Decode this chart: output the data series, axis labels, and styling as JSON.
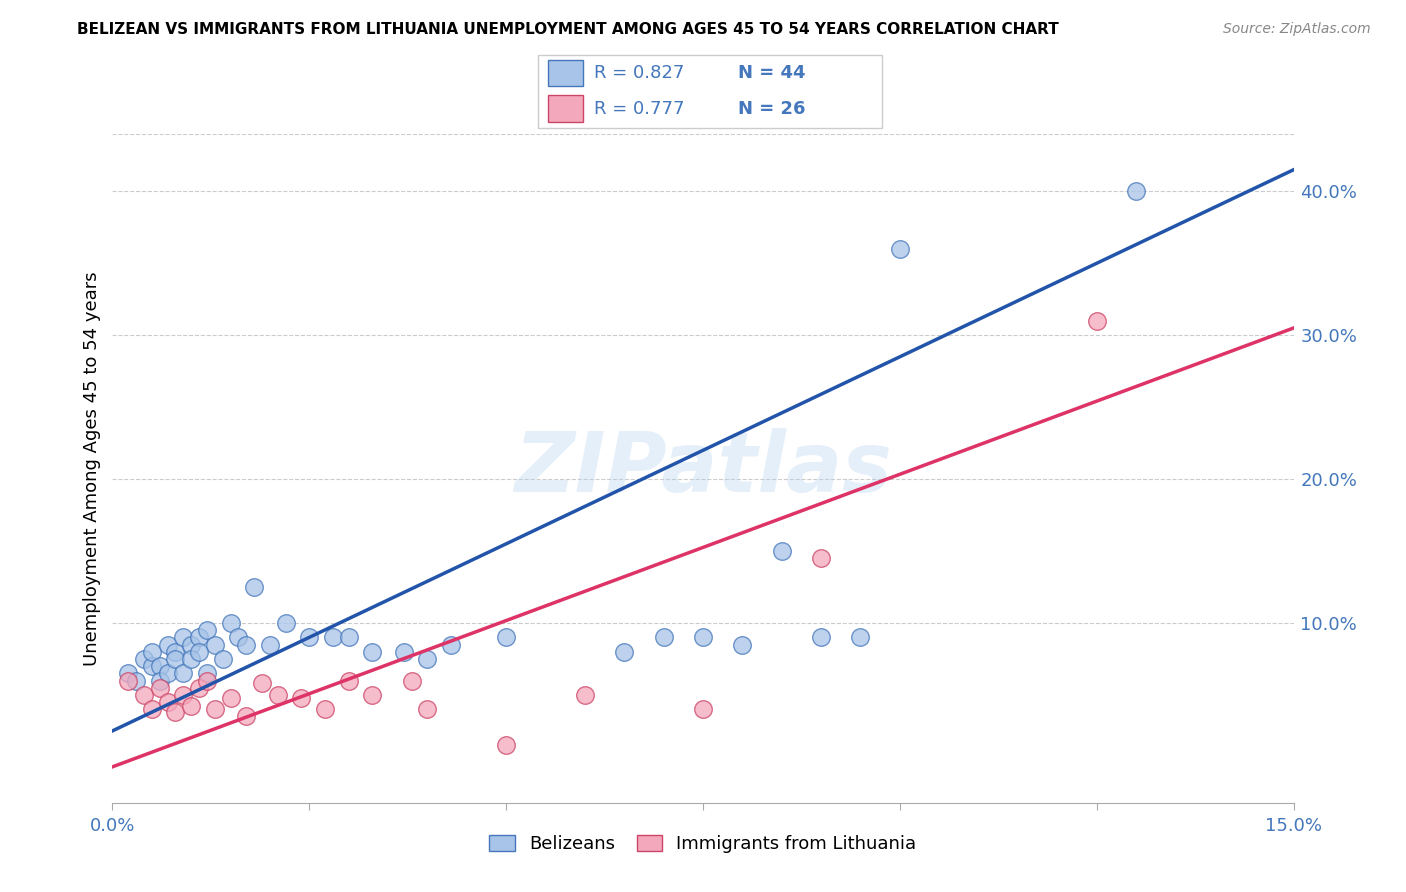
{
  "title": "BELIZEAN VS IMMIGRANTS FROM LITHUANIA UNEMPLOYMENT AMONG AGES 45 TO 54 YEARS CORRELATION CHART",
  "source": "Source: ZipAtlas.com",
  "ylabel": "Unemployment Among Ages 45 to 54 years",
  "xlim": [
    0.0,
    0.15
  ],
  "ylim": [
    -0.025,
    0.44
  ],
  "xticks": [
    0.0,
    0.025,
    0.05,
    0.075,
    0.1,
    0.125,
    0.15
  ],
  "ytick_right_vals": [
    0.0,
    0.1,
    0.2,
    0.3,
    0.4
  ],
  "ytick_right_labels": [
    "",
    "10.0%",
    "20.0%",
    "30.0%",
    "40.0%"
  ],
  "blue_fill": "#a8c4e8",
  "blue_edge": "#4477bb",
  "pink_fill": "#f4a8bc",
  "pink_edge": "#cc4466",
  "blue_line_color": "#2255aa",
  "pink_line_color": "#dd3366",
  "label_color": "#4477bb",
  "watermark": "ZIPatlas",
  "legend_R1": "0.827",
  "legend_N1": "44",
  "legend_R2": "0.777",
  "legend_N2": "26",
  "blue_scatter_x": [
    0.002,
    0.003,
    0.004,
    0.005,
    0.005,
    0.006,
    0.006,
    0.007,
    0.007,
    0.008,
    0.008,
    0.009,
    0.009,
    0.01,
    0.01,
    0.011,
    0.011,
    0.012,
    0.012,
    0.013,
    0.014,
    0.015,
    0.016,
    0.017,
    0.018,
    0.02,
    0.022,
    0.025,
    0.028,
    0.03,
    0.033,
    0.037,
    0.04,
    0.043,
    0.05,
    0.065,
    0.07,
    0.075,
    0.08,
    0.085,
    0.09,
    0.095,
    0.1,
    0.13
  ],
  "blue_scatter_y": [
    0.065,
    0.06,
    0.075,
    0.07,
    0.08,
    0.07,
    0.06,
    0.085,
    0.065,
    0.08,
    0.075,
    0.09,
    0.065,
    0.085,
    0.075,
    0.09,
    0.08,
    0.095,
    0.065,
    0.085,
    0.075,
    0.1,
    0.09,
    0.085,
    0.125,
    0.085,
    0.1,
    0.09,
    0.09,
    0.09,
    0.08,
    0.08,
    0.075,
    0.085,
    0.09,
    0.08,
    0.09,
    0.09,
    0.085,
    0.15,
    0.09,
    0.09,
    0.36,
    0.4
  ],
  "pink_scatter_x": [
    0.002,
    0.004,
    0.005,
    0.006,
    0.007,
    0.008,
    0.009,
    0.01,
    0.011,
    0.012,
    0.013,
    0.015,
    0.017,
    0.019,
    0.021,
    0.024,
    0.027,
    0.03,
    0.033,
    0.038,
    0.04,
    0.05,
    0.06,
    0.075,
    0.09,
    0.125
  ],
  "pink_scatter_y": [
    0.06,
    0.05,
    0.04,
    0.055,
    0.045,
    0.038,
    0.05,
    0.042,
    0.055,
    0.06,
    0.04,
    0.048,
    0.035,
    0.058,
    0.05,
    0.048,
    0.04,
    0.06,
    0.05,
    0.06,
    0.04,
    0.015,
    0.05,
    0.04,
    0.145,
    0.31
  ],
  "blue_line_x": [
    0.0,
    0.15
  ],
  "blue_line_y": [
    0.025,
    0.415
  ],
  "pink_line_x": [
    0.0,
    0.15
  ],
  "pink_line_y": [
    0.0,
    0.305
  ],
  "legend_label1": "Belizeans",
  "legend_label2": "Immigrants from Lithuania"
}
